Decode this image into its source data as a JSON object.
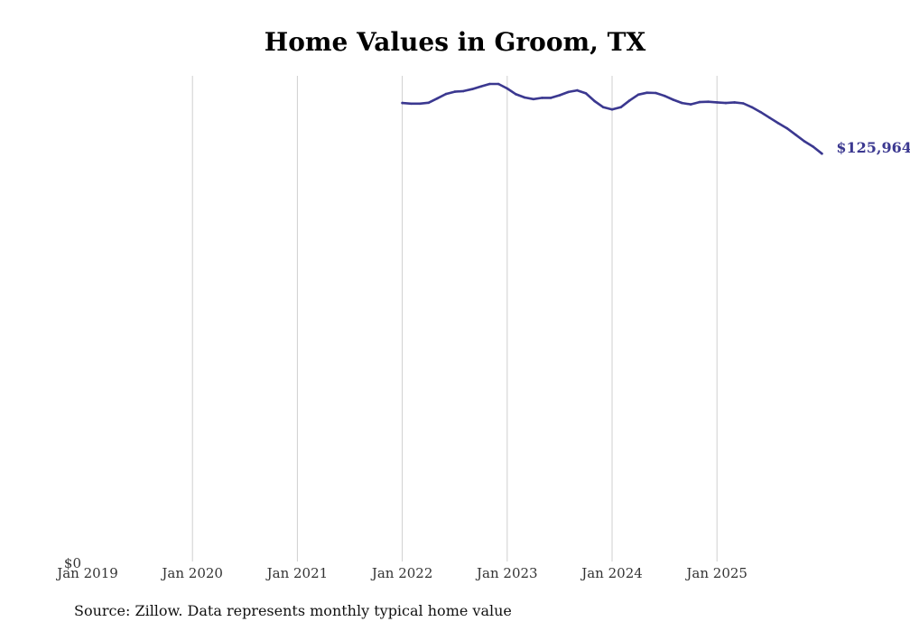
{
  "chart_data": {
    "type": "line",
    "title": "Home Values in Groom, TX",
    "xlabel": "",
    "ylabel": "",
    "x_ticks": [
      "Jan 2019",
      "Jan 2020",
      "Jan 2021",
      "Jan 2022",
      "Jan 2023",
      "Jan 2024",
      "Jan 2025"
    ],
    "y_tick_labels": [
      "$0"
    ],
    "ylim": [
      0,
      150000
    ],
    "grid": "vertical",
    "line_color": "#3b3890",
    "end_label": "$125,964",
    "series": [
      {
        "points": [
          [
            "2022-01",
            141600
          ],
          [
            "2022-02",
            141400
          ],
          [
            "2022-03",
            141400
          ],
          [
            "2022-04",
            141700
          ],
          [
            "2022-05",
            143000
          ],
          [
            "2022-06",
            144400
          ],
          [
            "2022-07",
            145100
          ],
          [
            "2022-08",
            145300
          ],
          [
            "2022-09",
            145900
          ],
          [
            "2022-10",
            146700
          ],
          [
            "2022-11",
            147500
          ],
          [
            "2022-12",
            147500
          ],
          [
            "2023-01",
            146100
          ],
          [
            "2023-02",
            144300
          ],
          [
            "2023-03",
            143300
          ],
          [
            "2023-04",
            142800
          ],
          [
            "2023-05",
            143200
          ],
          [
            "2023-06",
            143200
          ],
          [
            "2023-07",
            144000
          ],
          [
            "2023-08",
            145000
          ],
          [
            "2023-09",
            145500
          ],
          [
            "2023-10",
            144600
          ],
          [
            "2023-11",
            142200
          ],
          [
            "2023-12",
            140300
          ],
          [
            "2024-01",
            139600
          ],
          [
            "2024-02",
            140300
          ],
          [
            "2024-03",
            142400
          ],
          [
            "2024-04",
            144200
          ],
          [
            "2024-05",
            144800
          ],
          [
            "2024-06",
            144700
          ],
          [
            "2024-07",
            143800
          ],
          [
            "2024-08",
            142600
          ],
          [
            "2024-09",
            141600
          ],
          [
            "2024-10",
            141200
          ],
          [
            "2024-11",
            141900
          ],
          [
            "2024-12",
            142000
          ],
          [
            "2025-01",
            141800
          ],
          [
            "2025-02",
            141600
          ],
          [
            "2025-03",
            141800
          ],
          [
            "2025-04",
            141500
          ],
          [
            "2025-05",
            140300
          ],
          [
            "2025-06",
            138800
          ],
          [
            "2025-07",
            137100
          ],
          [
            "2025-08",
            135400
          ],
          [
            "2025-09",
            133800
          ],
          [
            "2025-10",
            131800
          ],
          [
            "2025-11",
            129800
          ],
          [
            "2025-12",
            128100
          ],
          [
            "2026-01",
            125964
          ]
        ]
      }
    ]
  },
  "source_note": "Source: Zillow. Data represents monthly typical home value"
}
